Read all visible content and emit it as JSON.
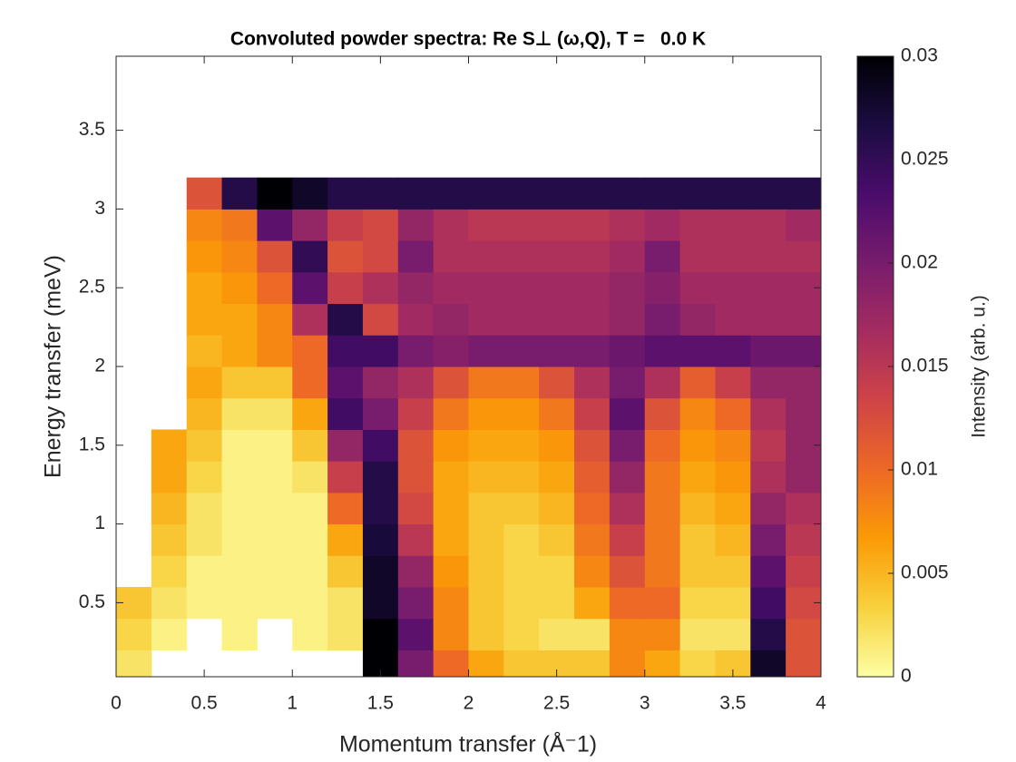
{
  "chart_data": {
    "type": "heatmap",
    "title": "Convoluted powder spectra: Re S⊥ (ω,Q), T =   0.0 K",
    "x_label": "Momentum transfer (Å⁻1)",
    "y_label": "Energy transfer (meV)",
    "colorbar_label": "Intensity (arb. u.)",
    "xlim": [
      0,
      4
    ],
    "xticks": [
      0,
      0.5,
      1,
      1.5,
      2,
      2.5,
      3,
      3.5,
      4
    ],
    "ylim": [
      0.03,
      3.97
    ],
    "yticks": [
      0.5,
      1,
      1.5,
      2,
      2.5,
      3,
      3.5
    ],
    "clim": [
      0,
      0.03
    ],
    "cticks": [
      0,
      0.005,
      0.01,
      0.015,
      0.02,
      0.025,
      0.03
    ],
    "colormap": [
      "#fcffa4",
      "#f7d13d",
      "#fb9b06",
      "#ed6925",
      "#cf4446",
      "#a52c60",
      "#781c6d",
      "#4a0c6b",
      "#1b0c41",
      "#000004"
    ],
    "xbins": [
      0,
      0.2,
      0.4,
      0.6,
      0.8,
      1,
      1.2,
      1.4,
      1.6,
      1.8,
      2,
      2.2,
      2.4,
      2.6,
      2.8,
      3,
      3.2,
      3.4,
      3.6,
      3.8,
      4
    ],
    "ybins": [
      0,
      0.2,
      0.4,
      0.6,
      0.8,
      1,
      1.2,
      1.4,
      1.6,
      1.8,
      2,
      2.2,
      2.4,
      2.6,
      2.8,
      3,
      3.2
    ],
    "z": [
      [
        0.002,
        null,
        null,
        null,
        null,
        null,
        null,
        0.03,
        0.02,
        0.01,
        0.006,
        0.004,
        0.004,
        0.004,
        0.008,
        0.006,
        0.003,
        0.004,
        0.028,
        0.012
      ],
      [
        0.003,
        0.001,
        null,
        0.001,
        null,
        0.001,
        0.002,
        0.03,
        0.022,
        0.008,
        0.004,
        0.003,
        0.002,
        0.002,
        0.008,
        0.008,
        0.002,
        0.002,
        0.026,
        0.012
      ],
      [
        0.004,
        0.002,
        0.001,
        0.001,
        0.001,
        0.001,
        0.002,
        0.028,
        0.02,
        0.008,
        0.004,
        0.003,
        0.003,
        0.006,
        0.01,
        0.01,
        0.003,
        0.003,
        0.024,
        0.013
      ],
      [
        null,
        0.003,
        0.001,
        0.001,
        0.001,
        0.001,
        0.004,
        0.028,
        0.018,
        0.007,
        0.004,
        0.003,
        0.003,
        0.008,
        0.012,
        0.009,
        0.004,
        0.004,
        0.022,
        0.014
      ],
      [
        null,
        0.004,
        0.002,
        0.001,
        0.001,
        0.001,
        0.006,
        0.027,
        0.015,
        0.006,
        0.004,
        0.003,
        0.004,
        0.009,
        0.014,
        0.009,
        0.004,
        0.005,
        0.02,
        0.015
      ],
      [
        null,
        0.005,
        0.002,
        0.001,
        0.001,
        0.001,
        0.01,
        0.026,
        0.013,
        0.006,
        0.004,
        0.004,
        0.005,
        0.01,
        0.016,
        0.009,
        0.005,
        0.006,
        0.018,
        0.016
      ],
      [
        null,
        0.006,
        0.003,
        0.001,
        0.001,
        0.002,
        0.014,
        0.026,
        0.012,
        0.006,
        0.005,
        0.005,
        0.006,
        0.011,
        0.018,
        0.009,
        0.006,
        0.007,
        0.016,
        0.018
      ],
      [
        null,
        0.006,
        0.004,
        0.001,
        0.001,
        0.004,
        0.018,
        0.024,
        0.012,
        0.007,
        0.006,
        0.006,
        0.007,
        0.012,
        0.02,
        0.01,
        0.007,
        0.008,
        0.015,
        0.018
      ],
      [
        null,
        null,
        0.005,
        0.002,
        0.002,
        0.006,
        0.024,
        0.02,
        0.014,
        0.009,
        0.007,
        0.007,
        0.009,
        0.014,
        0.022,
        0.012,
        0.008,
        0.01,
        0.016,
        0.018
      ],
      [
        null,
        null,
        0.006,
        0.004,
        0.004,
        0.01,
        0.022,
        0.018,
        0.016,
        0.012,
        0.009,
        0.009,
        0.012,
        0.016,
        0.02,
        0.016,
        0.011,
        0.014,
        0.018,
        0.018
      ],
      [
        null,
        null,
        0.005,
        0.006,
        0.008,
        0.01,
        0.024,
        0.024,
        0.02,
        0.019,
        0.02,
        0.02,
        0.02,
        0.02,
        0.021,
        0.022,
        0.022,
        0.022,
        0.021,
        0.021
      ],
      [
        null,
        null,
        0.006,
        0.006,
        0.008,
        0.016,
        0.026,
        0.013,
        0.017,
        0.018,
        0.017,
        0.017,
        0.017,
        0.017,
        0.018,
        0.02,
        0.018,
        0.017,
        0.017,
        0.017
      ],
      [
        null,
        null,
        0.006,
        0.007,
        0.01,
        0.022,
        0.014,
        0.016,
        0.018,
        0.017,
        0.017,
        0.017,
        0.017,
        0.017,
        0.018,
        0.019,
        0.017,
        0.017,
        0.017,
        0.017
      ],
      [
        null,
        null,
        0.007,
        0.008,
        0.012,
        0.025,
        0.012,
        0.013,
        0.02,
        0.016,
        0.016,
        0.016,
        0.016,
        0.016,
        0.017,
        0.02,
        0.016,
        0.016,
        0.016,
        0.016
      ],
      [
        null,
        null,
        0.008,
        0.009,
        0.022,
        0.018,
        0.014,
        0.013,
        0.018,
        0.016,
        0.015,
        0.015,
        0.015,
        0.015,
        0.016,
        0.017,
        0.016,
        0.016,
        0.016,
        0.017
      ],
      [
        null,
        null,
        0.012,
        0.026,
        0.03,
        0.028,
        0.026,
        0.026,
        0.026,
        0.026,
        0.026,
        0.026,
        0.026,
        0.026,
        0.026,
        0.026,
        0.026,
        0.026,
        0.026,
        0.026
      ]
    ]
  }
}
